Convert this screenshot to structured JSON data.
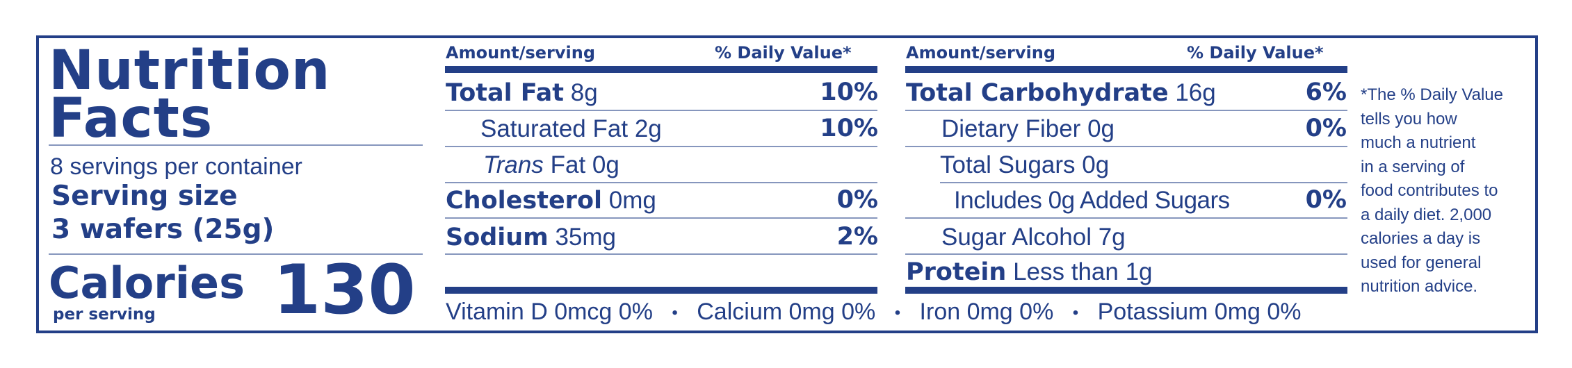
{
  "colors": {
    "ink": "#233f87",
    "background": "#ffffff"
  },
  "left": {
    "title_line1": "Nutrition",
    "title_line2": "Facts",
    "servings_per_container": "8 servings per container",
    "serving_size_label": "Serving size",
    "serving_size_value": "3 wafers (25g)",
    "calories_label": "Calories",
    "calories_sub": "per serving",
    "calories_value": "130"
  },
  "headers": {
    "amount": "Amount/serving",
    "dv": "% Daily Value*"
  },
  "col1": [
    {
      "name": "Total Fat",
      "amount": "8g",
      "dv": "10%"
    },
    {
      "name": "Saturated Fat",
      "amount": "2g",
      "dv": "10%"
    },
    {
      "name_italic": "Trans",
      "name": "Fat",
      "amount": "0g",
      "dv": ""
    },
    {
      "name": "Cholesterol",
      "amount": "0mg",
      "dv": "0%"
    },
    {
      "name": "Sodium",
      "amount": "35mg",
      "dv": "2%"
    }
  ],
  "col2": [
    {
      "name": "Total Carbohydrate",
      "amount": "16g",
      "dv": "6%"
    },
    {
      "name": "Dietary Fiber",
      "amount": "0g",
      "dv": "0%"
    },
    {
      "name": "Total Sugars",
      "amount": "0g",
      "dv": ""
    },
    {
      "name": "Includes",
      "amount": "0g",
      "name_after": "Added Sugars",
      "dv": "0%"
    },
    {
      "name": "Sugar Alcohol",
      "amount": "7g",
      "dv": ""
    },
    {
      "name": "Protein",
      "amount": "Less than 1g",
      "dv": ""
    }
  ],
  "vitamins": {
    "vitamin_d": "Vitamin D 0mcg 0%",
    "calcium": "Calcium 0mg 0%",
    "iron": "Iron 0mg 0%",
    "potassium": "Potassium 0mg 0%",
    "separator": "•"
  },
  "footnote": {
    "lines": [
      "*The % Daily Value",
      "tells you how",
      "much a nutrient",
      "in a serving of",
      "food contributes to",
      "a daily diet. 2,000",
      "calories a day is",
      "used for general",
      "nutrition advice."
    ]
  }
}
